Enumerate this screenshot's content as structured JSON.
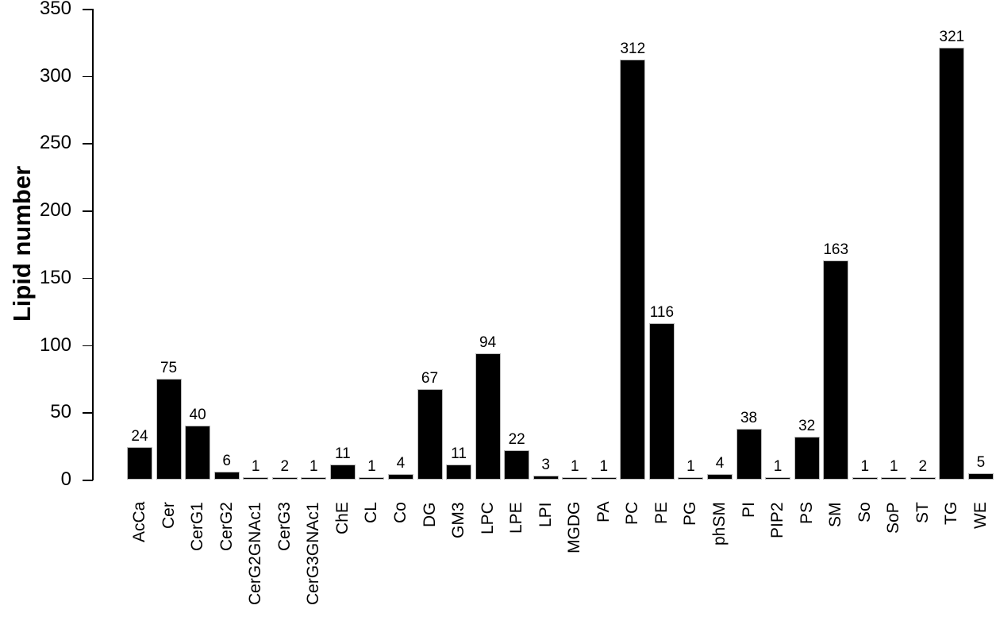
{
  "chart_data": {
    "type": "bar",
    "title": "",
    "xlabel": "",
    "ylabel": "Lipid number",
    "ylim": [
      0,
      350
    ],
    "yticks": [
      0,
      50,
      100,
      150,
      200,
      250,
      300,
      350
    ],
    "grid": false,
    "legend": null,
    "bar_color": "#000000",
    "value_labels_shown": true,
    "categories": [
      "AcCa",
      "Cer",
      "CerG1",
      "CerG2",
      "CerG2GNAc1",
      "CerG3",
      "CerG3GNAc1",
      "ChE",
      "CL",
      "Co",
      "DG",
      "GM3",
      "LPC",
      "LPE",
      "LPI",
      "MGDG",
      "PA",
      "PC",
      "PE",
      "PG",
      "phSM",
      "PI",
      "PIP2",
      "PS",
      "SM",
      "So",
      "SoP",
      "ST",
      "TG",
      "WE"
    ],
    "values": [
      24,
      75,
      40,
      6,
      1,
      2,
      1,
      11,
      1,
      4,
      67,
      11,
      94,
      22,
      3,
      1,
      1,
      312,
      116,
      1,
      4,
      38,
      1,
      32,
      163,
      1,
      1,
      2,
      321,
      5
    ]
  }
}
